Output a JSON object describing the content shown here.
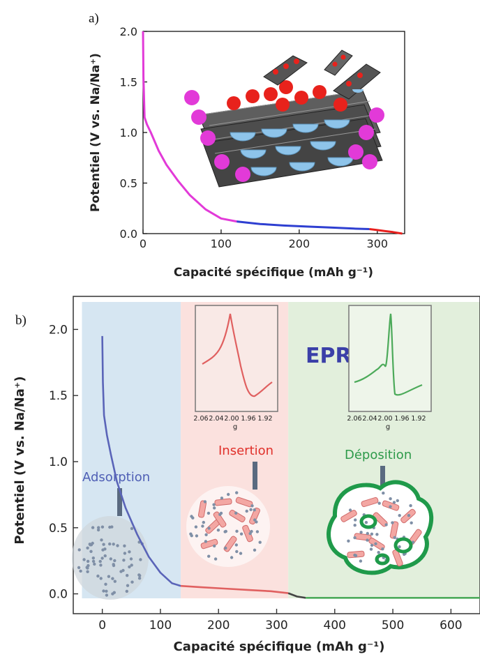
{
  "chart_data": [
    {
      "panel_label": "a)",
      "type": "line",
      "xlabel": "Capacité spécifique (mAh g⁻¹)",
      "ylabel": "Potentiel (V vs. Na/Na⁺)",
      "xlim": [
        0,
        335
      ],
      "ylim": [
        0,
        2.0
      ],
      "xticks": [
        0,
        100,
        200,
        300
      ],
      "yticks": [
        0.0,
        0.5,
        1.0,
        1.5,
        2.0
      ],
      "xtick_labels": [
        "0",
        "100",
        "200",
        "300"
      ],
      "ytick_labels": [
        "0.0",
        "0.5",
        "1.0",
        "1.5",
        "2.0"
      ],
      "series": [
        {
          "color": "#e23ad8",
          "x": [
            0,
            0.5,
            2,
            5,
            10,
            20,
            30,
            45,
            60,
            80,
            100,
            120
          ],
          "y": [
            2.0,
            1.55,
            1.15,
            1.08,
            1.0,
            0.82,
            0.68,
            0.52,
            0.38,
            0.24,
            0.15,
            0.12
          ]
        },
        {
          "color": "#2e3fd1",
          "x": [
            120,
            150,
            180,
            210,
            240,
            270,
            290
          ],
          "y": [
            0.12,
            0.095,
            0.08,
            0.07,
            0.06,
            0.05,
            0.045
          ]
        },
        {
          "color": "#e8201e",
          "x": [
            290,
            300,
            310,
            320,
            332
          ],
          "y": [
            0.045,
            0.035,
            0.025,
            0.015,
            0.0
          ]
        }
      ]
    },
    {
      "panel_label": "b)",
      "type": "line",
      "xlabel": "Capacité spécifique (mAh g⁻¹)",
      "ylabel": "Potentiel (V vs. Na/Na⁺)",
      "xlim": [
        -50,
        650
      ],
      "ylim": [
        -0.15,
        2.25
      ],
      "xticks": [
        0,
        100,
        200,
        300,
        400,
        500,
        600
      ],
      "yticks": [
        0.0,
        0.5,
        1.0,
        1.5,
        2.0
      ],
      "xtick_labels": [
        "0",
        "100",
        "200",
        "300",
        "400",
        "500",
        "600"
      ],
      "ytick_labels": [
        "0.0",
        "0.5",
        "1.0",
        "1.5",
        "2.0"
      ],
      "regions": [
        {
          "label": "Adsorption",
          "x_start": -35,
          "x_end": 135,
          "fill": "#d6e6f2",
          "label_color": "#4f5fb5"
        },
        {
          "label": "Insertion",
          "x_start": 135,
          "x_end": 320,
          "fill": "#fbe1de",
          "label_color": "#e0302a"
        },
        {
          "label": "Déposition",
          "x_start": 320,
          "x_end": 650,
          "fill": "#e2efdc",
          "label_color": "#2e9a4a"
        }
      ],
      "technique": "EPR",
      "technique_color": "#3a3fa8",
      "series": [
        {
          "color": "#5a64b8",
          "x": [
            0,
            1,
            3,
            8,
            15,
            25,
            40,
            60,
            80,
            100,
            120,
            135
          ],
          "y": [
            1.95,
            1.6,
            1.35,
            1.2,
            1.05,
            0.85,
            0.65,
            0.45,
            0.28,
            0.16,
            0.08,
            0.06
          ]
        },
        {
          "color": "#e06060",
          "x": [
            135,
            170,
            210,
            250,
            290,
            320
          ],
          "y": [
            0.06,
            0.05,
            0.04,
            0.03,
            0.02,
            0.005
          ]
        },
        {
          "color": "#444444",
          "x": [
            320,
            335,
            350
          ],
          "y": [
            0.005,
            -0.02,
            -0.03
          ]
        },
        {
          "color": "#4caa5a",
          "x": [
            350,
            400,
            450,
            500,
            550,
            600,
            650
          ],
          "y": [
            -0.03,
            -0.03,
            -0.03,
            -0.03,
            -0.03,
            -0.03,
            -0.03
          ]
        }
      ],
      "insets": [
        {
          "name": "insertion",
          "color": "#e06060",
          "xlabel": "g",
          "tick_labels": [
            "2.06",
            "2.04",
            "2.00",
            "1.96",
            "1.92"
          ]
        },
        {
          "name": "deposition",
          "color": "#4caa5a",
          "xlabel": "g",
          "tick_labels": [
            "2.06",
            "2.04",
            "2.00",
            "1.96",
            "1.92"
          ]
        }
      ]
    }
  ]
}
